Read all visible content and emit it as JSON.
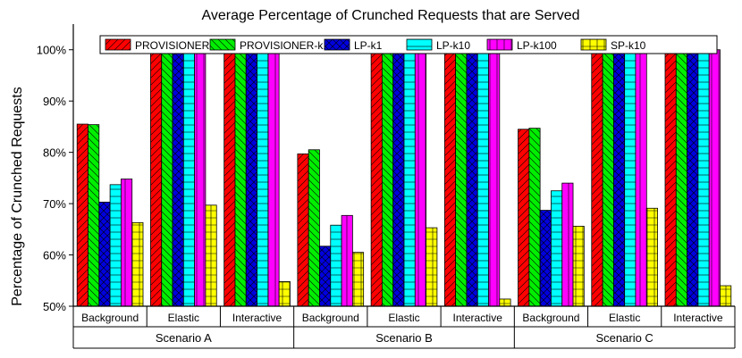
{
  "chart_data": {
    "type": "bar",
    "title": "Average Percentage of Crunched Requests that are Served",
    "ylabel": "Percentage of Crunched Requests",
    "xlabel": "",
    "ylim": [
      50,
      105
    ],
    "yticks": [
      "50%",
      "60%",
      "70%",
      "80%",
      "90%",
      "100%"
    ],
    "grid": false,
    "legend_position": "top",
    "groups": [
      {
        "label": "Scenario A",
        "categories": [
          "Background",
          "Elastic",
          "Interactive"
        ]
      },
      {
        "label": "Scenario B",
        "categories": [
          "Background",
          "Elastic",
          "Interactive"
        ]
      },
      {
        "label": "Scenario C",
        "categories": [
          "Background",
          "Elastic",
          "Interactive"
        ]
      }
    ],
    "series": [
      {
        "name": "PROVISIONER-k1",
        "color": "#ff0000",
        "hatch": "diag-up",
        "values": [
          85.5,
          100,
          100,
          79.7,
          100,
          100,
          84.5,
          100,
          100
        ]
      },
      {
        "name": "PROVISIONER-k10",
        "color": "#00ee00",
        "hatch": "diag-down",
        "values": [
          85.4,
          100,
          100,
          80.5,
          100,
          100,
          84.7,
          100,
          100
        ]
      },
      {
        "name": "LP-k1",
        "color": "#0000dd",
        "hatch": "cross",
        "values": [
          70.3,
          99.7,
          100,
          61.7,
          99.3,
          100,
          68.7,
          99.5,
          100
        ]
      },
      {
        "name": "LP-k10",
        "color": "#00ffff",
        "hatch": "horizontal",
        "values": [
          73.7,
          99.8,
          100,
          65.8,
          99.7,
          100,
          72.5,
          99.7,
          100
        ]
      },
      {
        "name": "LP-k100",
        "color": "#ff00ff",
        "hatch": "vertical",
        "values": [
          74.8,
          99.9,
          100,
          67.7,
          99.7,
          100,
          74.0,
          99.7,
          100
        ]
      },
      {
        "name": "SP-k10",
        "color": "#ffff00",
        "hatch": "grid",
        "values": [
          66.3,
          69.7,
          54.8,
          60.5,
          65.3,
          51.4,
          65.6,
          69.1,
          54.0
        ]
      }
    ]
  }
}
